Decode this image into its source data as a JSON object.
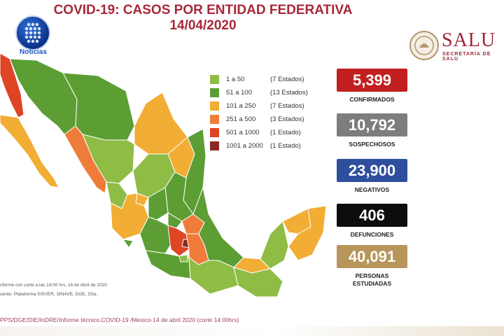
{
  "header": {
    "title_line1": "COVID-19: CASOS POR ENTIDAD FEDERATIVA",
    "title_line2": "14/04/2020"
  },
  "logo_left": {
    "text": "Noticias",
    "icon": "broadcast-logo-icon"
  },
  "salud_logo": {
    "word": "SALU",
    "subtitle": "SECRETARÍA DE SALU",
    "icon": "government-seal-icon"
  },
  "legend": [
    {
      "range": "1 a 50",
      "count": "(7 Estados)",
      "color": "#8fbc45"
    },
    {
      "range": "51 a 100",
      "count": "(13 Estados)",
      "color": "#5c9e34"
    },
    {
      "range": "101 a 250",
      "count": "(7 Estados)",
      "color": "#f2ad35"
    },
    {
      "range": "251 a 500",
      "count": "(3 Estados)",
      "color": "#f07c3a"
    },
    {
      "range": "501 a 1000",
      "count": "(1 Estado)",
      "color": "#df4424"
    },
    {
      "range": "1001 a 2000",
      "count": "(1 Estado)",
      "color": "#8c2826"
    }
  ],
  "stats": [
    {
      "value": "5,399",
      "label": "CONFIRMADOS",
      "color": "#c21f1f"
    },
    {
      "value": "10,792",
      "label": "SOSPECHOSOS",
      "color": "#7d7d7d"
    },
    {
      "value": "23,900",
      "label": "NEGATIVOS",
      "color": "#2e4f9e"
    },
    {
      "value": "406",
      "label": "DEFUNCIONES",
      "color": "#0d0d0d"
    },
    {
      "value": "40,091",
      "label": "PERSONAS ESTUDIADAS",
      "color": "#b8955a"
    }
  ],
  "notes": {
    "line1": "nforme con corte a las 14:00 hrs, 14 de Abril de 2020",
    "line2": "uente: Plataforma SISVER, SINAVE, DGE, SSa."
  },
  "footer": "PPS/DGE/DIE/InDRE/Informe técnico.COVID-19 /Mexico-14 de abril 2020 (corte 14:00hrs)"
}
